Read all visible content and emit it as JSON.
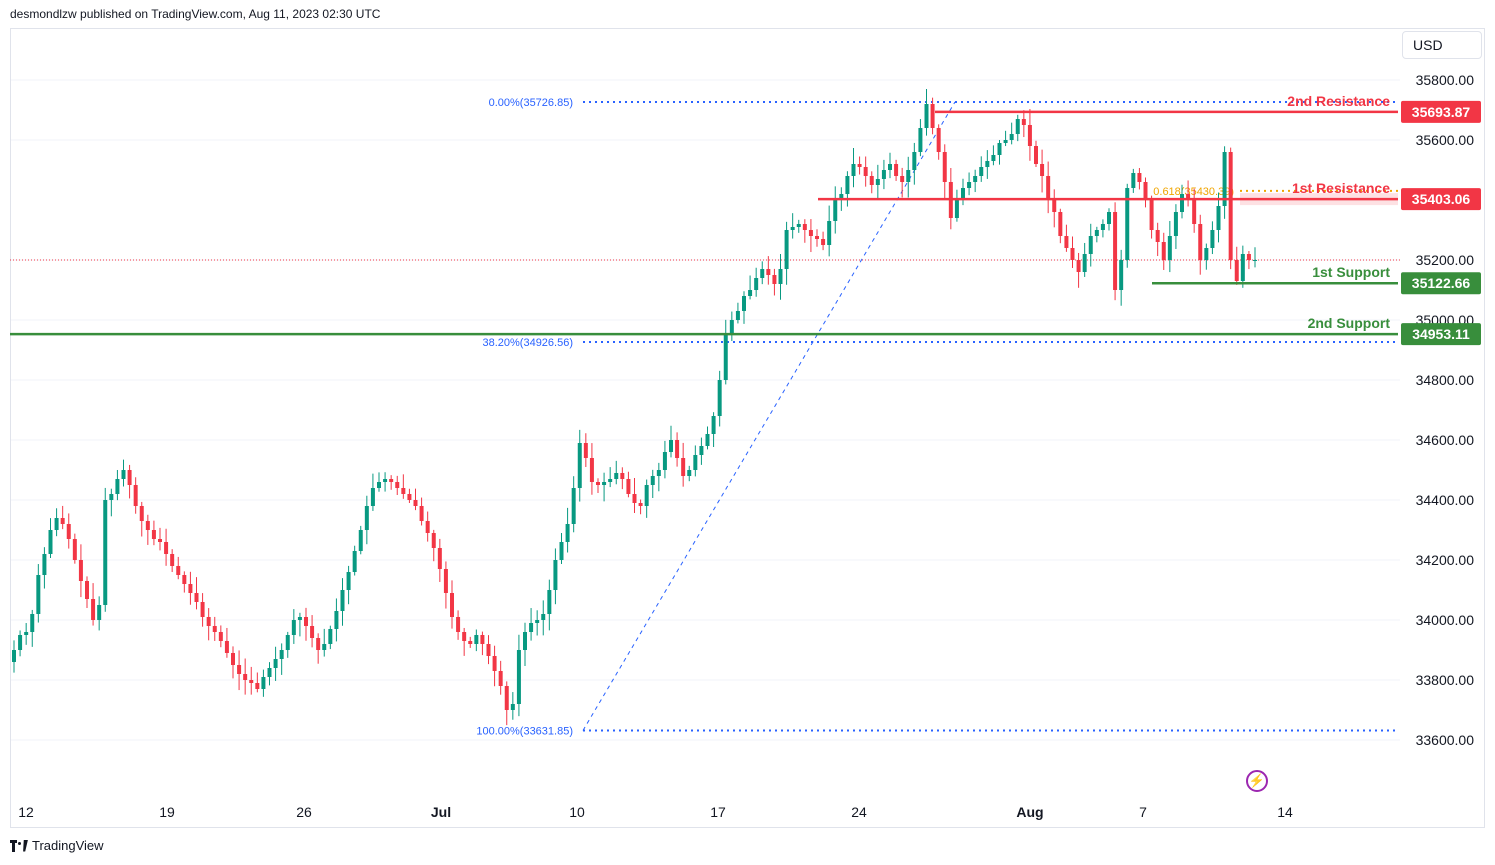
{
  "header": {
    "published": "desmondlzw published on TradingView.com, Aug 11, 2023 02:30 UTC"
  },
  "currency": "USD",
  "footer": {
    "brand": "TradingView"
  },
  "colors": {
    "up": "#089981",
    "down": "#f23645",
    "resistance": "#f23645",
    "support": "#388e3c",
    "fib": "#2962ff",
    "fib_mid": "#f0a500",
    "grid": "#f0f3fa"
  },
  "chart_data": {
    "type": "candlestick",
    "title": "",
    "y_axis": {
      "ticks": [
        35800,
        35600,
        35200,
        35000,
        34800,
        34600,
        34400,
        34200,
        34000,
        33800,
        33600
      ],
      "tick_labels": [
        "35800.00",
        "35600.00",
        "35200.00",
        "35000.00",
        "34800.00",
        "34600.00",
        "34400.00",
        "34200.00",
        "34000.00",
        "33800.00",
        "33600.00"
      ],
      "range": [
        33600,
        35800
      ]
    },
    "x_axis": {
      "tick_labels": [
        "12",
        "19",
        "26",
        "Jul",
        "10",
        "17",
        "24",
        "Aug",
        "7",
        "14"
      ]
    },
    "levels": [
      {
        "name": "2nd Resistance",
        "value": 35693.87,
        "label": "35693.87",
        "kind": "resistance"
      },
      {
        "name": "1st Resistance",
        "value": 35403.06,
        "label": "35403.06",
        "kind": "resistance"
      },
      {
        "name": "1st Support",
        "value": 35122.66,
        "label": "35122.66",
        "kind": "support"
      },
      {
        "name": "2nd Support",
        "value": 34953.11,
        "label": "34953.11",
        "kind": "support"
      }
    ],
    "fibonacci": [
      {
        "label": "0.00%(35726.85)",
        "value": 35726.85
      },
      {
        "label": "38.20%(34926.56)",
        "value": 34926.56
      },
      {
        "label": "100.00%(33631.85)",
        "value": 33631.85
      },
      {
        "label": "0.618(35430.39)",
        "value": 35430.39
      }
    ],
    "last_price": 35200,
    "closes": [
      33900,
      33950,
      33960,
      34020,
      34150,
      34220,
      34300,
      34340,
      34320,
      34270,
      34200,
      34130,
      34070,
      34000,
      34050,
      34400,
      34420,
      34470,
      34500,
      34450,
      34380,
      34330,
      34300,
      34270,
      34260,
      34220,
      34180,
      34150,
      34120,
      34090,
      34060,
      34010,
      33980,
      33960,
      33930,
      33890,
      33850,
      33820,
      33800,
      33790,
      33770,
      33810,
      33840,
      33870,
      33900,
      33950,
      34000,
      34010,
      33980,
      33940,
      33900,
      33920,
      33970,
      34030,
      34100,
      34160,
      34230,
      34300,
      34380,
      34440,
      34460,
      34470,
      34460,
      34440,
      34420,
      34400,
      34380,
      34330,
      34290,
      34240,
      34170,
      34090,
      34010,
      33960,
      33930,
      33920,
      33950,
      33920,
      33880,
      33830,
      33780,
      33700,
      33720,
      33900,
      33960,
      33990,
      34000,
      34020,
      34100,
      34200,
      34260,
      34320,
      34440,
      34590,
      34540,
      34460,
      34450,
      34460,
      34470,
      34490,
      34470,
      34420,
      34390,
      34380,
      34450,
      34480,
      34500,
      34560,
      34600,
      34540,
      34480,
      34500,
      34550,
      34580,
      34620,
      34680,
      34800,
      34950,
      35000,
      35030,
      35080,
      35100,
      35140,
      35170,
      35150,
      35120,
      35170,
      35300,
      35310,
      35320,
      35300,
      35280,
      35270,
      35250,
      35330,
      35400,
      35420,
      35480,
      35520,
      35510,
      35480,
      35450,
      35470,
      35500,
      35520,
      35480,
      35460,
      35500,
      35560,
      35640,
      35720,
      35640,
      35560,
      35460,
      35340,
      35400,
      35440,
      35460,
      35480,
      35510,
      35530,
      35550,
      35590,
      35600,
      35620,
      35670,
      35650,
      35580,
      35520,
      35480,
      35400,
      35360,
      35280,
      35240,
      35200,
      35160,
      35220,
      35280,
      35300,
      35320,
      35360,
      35100,
      35200,
      35440,
      35490,
      35460,
      35400,
      35300,
      35260,
      35200,
      35280,
      35360,
      35420,
      35400,
      35320,
      35200,
      35240,
      35300,
      35380,
      35560,
      35200,
      35130,
      35220,
      35200,
      35200
    ]
  }
}
